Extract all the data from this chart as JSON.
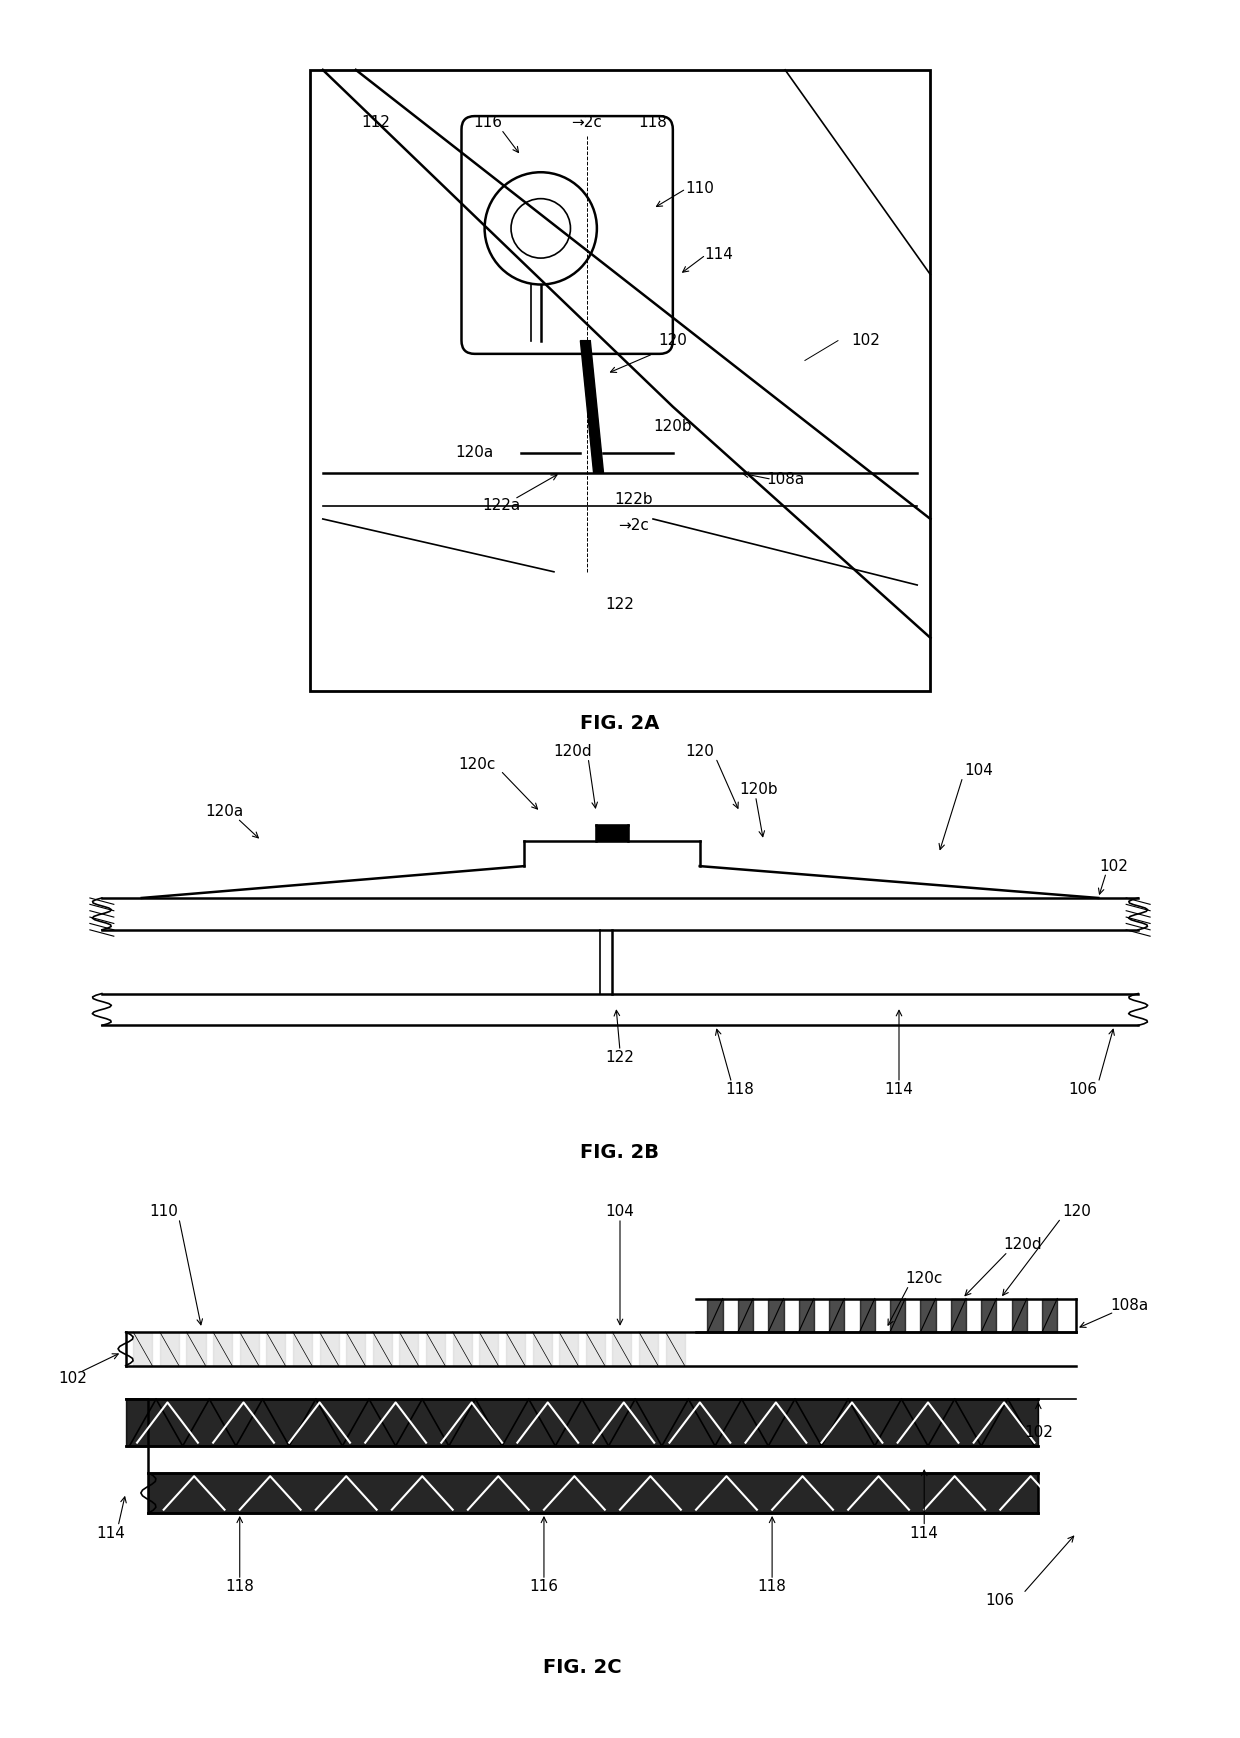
{
  "background_color": "#ffffff",
  "line_color": "#000000",
  "fig_width": 12.4,
  "fig_height": 17.38,
  "fig2a_label": "FIG. 2A",
  "fig2b_label": "FIG. 2B",
  "fig2c_label": "FIG. 2C",
  "label_fontsize": 14,
  "annot_fontsize": 11
}
